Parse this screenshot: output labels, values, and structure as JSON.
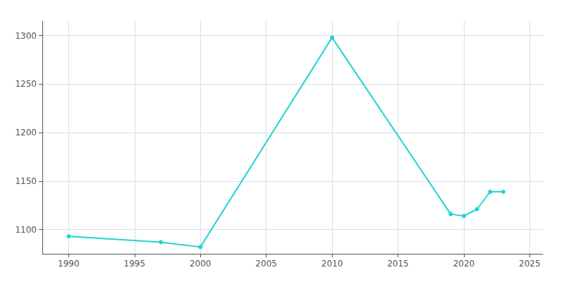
{
  "chart_data": {
    "type": "line",
    "x": [
      1990,
      1997,
      2000,
      2010,
      2019,
      2020,
      2021,
      2022,
      2023
    ],
    "values": [
      1093,
      1087,
      1082,
      1298,
      1116,
      1114,
      1121,
      1139,
      1139
    ],
    "color": "#22d3d3",
    "marker": "circle",
    "xlim": [
      1988,
      2026
    ],
    "ylim": [
      1075,
      1315
    ],
    "xticks": [
      1990,
      1995,
      2000,
      2005,
      2010,
      2015,
      2020,
      2025
    ],
    "yticks": [
      1100,
      1150,
      1200,
      1250,
      1300
    ],
    "grid": true
  }
}
